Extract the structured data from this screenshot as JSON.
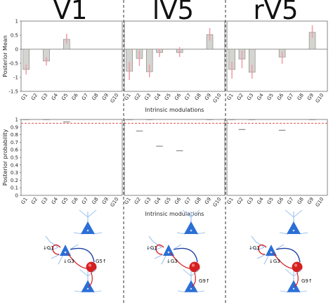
{
  "chart_data": [
    {
      "type": "bar",
      "title": "V1",
      "xlabel": "Intrinsic modulations",
      "ylabel": "Posterior Mean",
      "ylim": [
        -1.5,
        1
      ],
      "yticks": [
        "1",
        "0.5",
        "0",
        "-0.5",
        "-1",
        "-1.5"
      ],
      "categories": [
        "G1",
        "G2",
        "G3",
        "G4",
        "G5",
        "G6",
        "G7",
        "G8",
        "G9",
        "G10"
      ],
      "values": [
        -0.72,
        0,
        -0.42,
        0,
        0.35,
        0,
        0,
        0,
        0,
        0
      ],
      "error_low": [
        -0.9,
        0,
        -0.58,
        0,
        0.2,
        0,
        0,
        0,
        0,
        0
      ],
      "error_high": [
        -0.55,
        0,
        -0.28,
        0,
        0.55,
        0,
        0,
        0,
        0,
        0
      ]
    },
    {
      "type": "bar",
      "title": "lV5",
      "xlabel": "Intrinsic modulations",
      "ylim": [
        -1.5,
        1
      ],
      "categories": [
        "G1",
        "G2",
        "G3",
        "G4",
        "G5",
        "G6",
        "G7",
        "G8",
        "G9",
        "G10"
      ],
      "values": [
        -0.78,
        -0.33,
        -0.8,
        -0.12,
        0,
        -0.12,
        0,
        0,
        0.52,
        0
      ],
      "error_low": [
        -1.1,
        -0.6,
        -1.0,
        -0.28,
        0,
        -0.28,
        0,
        0,
        0.3,
        0
      ],
      "error_high": [
        -0.45,
        -0.05,
        -0.55,
        0.02,
        0,
        0.08,
        0,
        0,
        0.75,
        0
      ]
    },
    {
      "type": "bar",
      "title": "rV5",
      "xlabel": "Intrinsic modulations",
      "ylim": [
        -1.5,
        1
      ],
      "categories": [
        "G1",
        "G2",
        "G3",
        "G4",
        "G5",
        "G6",
        "G7",
        "G8",
        "G9",
        "G10"
      ],
      "values": [
        -0.72,
        -0.35,
        -0.82,
        0,
        0,
        -0.28,
        0,
        0,
        0.6,
        0
      ],
      "error_low": [
        -1.05,
        -0.68,
        -1.05,
        0,
        0,
        -0.52,
        0,
        0,
        0.4,
        0
      ],
      "error_high": [
        -0.45,
        -0.05,
        -0.55,
        0,
        0,
        -0.08,
        0,
        0,
        0.85,
        0
      ]
    },
    {
      "type": "bar",
      "title": "V1",
      "xlabel": "Intrinsic modulations",
      "ylabel": "Posterior probability",
      "ylim": [
        0,
        1
      ],
      "yticks": [
        "1",
        "0.9",
        "0.8",
        "0.7",
        "0.6",
        "0.5",
        "0.4",
        "0.3",
        "0.2",
        "0.1",
        "0"
      ],
      "threshold": 0.95,
      "categories": [
        "G1",
        "G2",
        "G3",
        "G4",
        "G5",
        "G6",
        "G7",
        "G8",
        "G9",
        "G10"
      ],
      "values": [
        1.0,
        0,
        1.0,
        0,
        0.97,
        0,
        0,
        0,
        0,
        0
      ]
    },
    {
      "type": "bar",
      "title": "lV5",
      "xlabel": "Intrinsic modulations",
      "ylim": [
        0,
        1
      ],
      "threshold": 0.95,
      "categories": [
        "G1",
        "G2",
        "G3",
        "G4",
        "G5",
        "G6",
        "G7",
        "G8",
        "G9",
        "G10"
      ],
      "values": [
        1.0,
        0.85,
        1.0,
        0.65,
        0,
        0.59,
        0,
        0,
        1.0,
        0
      ]
    },
    {
      "type": "bar",
      "title": "rV5",
      "xlabel": "Intrinsic modulations",
      "ylim": [
        0,
        1
      ],
      "threshold": 0.95,
      "categories": [
        "G1",
        "G2",
        "G3",
        "G4",
        "G5",
        "G6",
        "G7",
        "G8",
        "G9",
        "G10"
      ],
      "values": [
        1.0,
        0.87,
        1.0,
        0,
        0,
        0.86,
        0,
        0,
        1.0,
        0
      ]
    }
  ],
  "diagrams": [
    {
      "labels": [
        "G1",
        "G3",
        "G5"
      ]
    },
    {
      "labels": [
        "G1",
        "G3",
        "G9"
      ]
    },
    {
      "labels": [
        "G1",
        "G3",
        "G9"
      ]
    }
  ],
  "colors": {
    "bar_fill": "#d4d4d0",
    "bar_stroke": "#8a8a86",
    "error_bar": "#f29aa8",
    "threshold_line": "#e05050",
    "divider": "#333333",
    "neuron_blue": "#2b6fd6",
    "neuron_red": "#d42020"
  }
}
